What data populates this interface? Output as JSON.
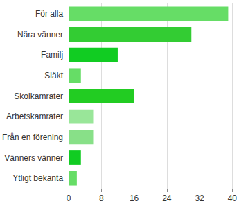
{
  "chart_data": {
    "type": "bar",
    "orientation": "horizontal",
    "categories": [
      "För alla",
      "Nära vänner",
      "Familj",
      "Släkt",
      "Skolkamrater",
      "Arbetskamrater",
      "Från en förening",
      "Vänners vänner",
      "Ytligt bekanta"
    ],
    "values": [
      39,
      30,
      12,
      3,
      16,
      6,
      6,
      3,
      2
    ],
    "colors": [
      "#66dd66",
      "#33cc33",
      "#11cc22",
      "#66dd66",
      "#22cc22",
      "#99e699",
      "#88e088",
      "#11cc22",
      "#66dd66"
    ],
    "xlim": [
      0,
      40
    ],
    "xticks": [
      0,
      8,
      16,
      24,
      32,
      40
    ],
    "grid": true
  }
}
